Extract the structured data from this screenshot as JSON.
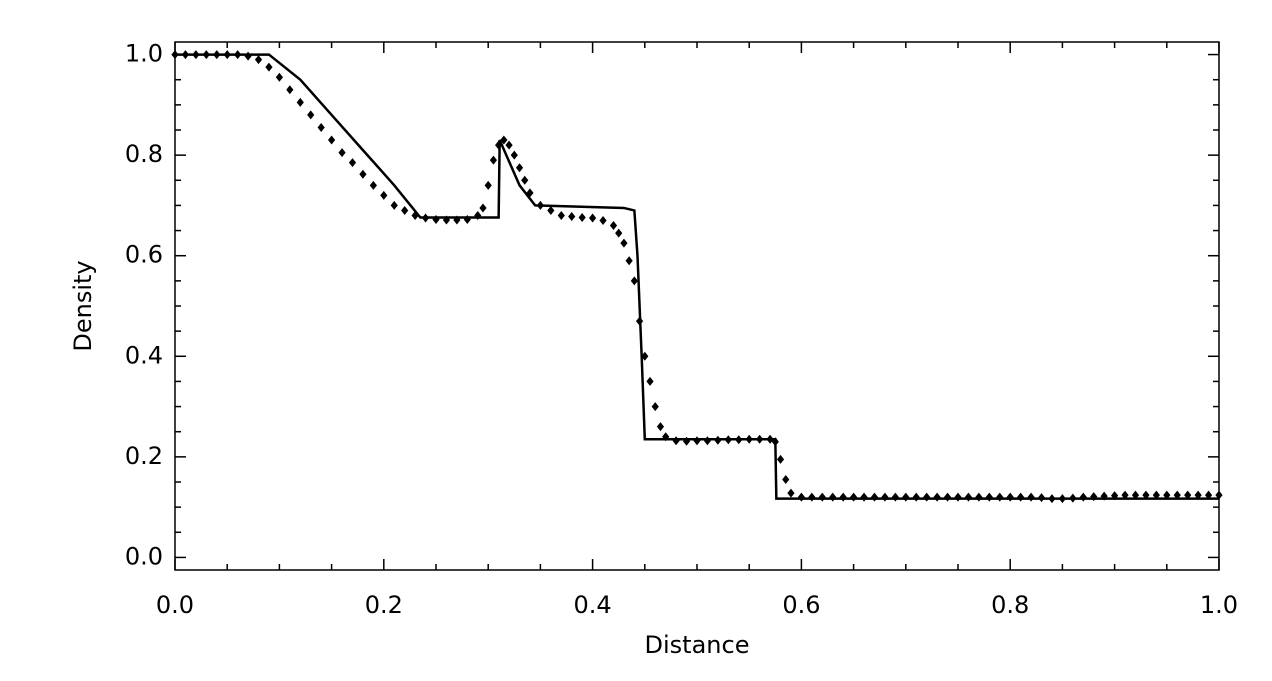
{
  "chart_data": {
    "type": "line",
    "xlabel": "Distance",
    "ylabel": "Density",
    "xlim": [
      0,
      1
    ],
    "ylim": [
      -0.025,
      1.025
    ],
    "xticks": [
      {
        "value": 0,
        "label": "0.0"
      },
      0.2,
      0.4,
      0.6,
      0.8,
      {
        "value": 1,
        "label": "1.0"
      }
    ],
    "yticks": [
      {
        "value": 0,
        "label": "0.0"
      },
      0.2,
      0.4,
      0.6,
      0.8,
      {
        "value": 1,
        "label": "1.0"
      }
    ],
    "xminorticks": [
      0.05,
      0.1,
      0.15,
      0.25,
      0.3,
      0.35,
      0.45,
      0.5,
      0.55,
      0.65,
      0.7,
      0.75,
      0.85,
      0.9,
      0.95
    ],
    "yminorticks": [
      0.05,
      0.1,
      0.15,
      0.25,
      0.3,
      0.35,
      0.45,
      0.5,
      0.55,
      0.65,
      0.7,
      0.75,
      0.85,
      0.9,
      0.95
    ],
    "series": [
      {
        "type": "line",
        "color": "#000000",
        "x": [
          0,
          0.09,
          0.12,
          0.15,
          0.18,
          0.21,
          0.235,
          0.31,
          0.311,
          0.33,
          0.345,
          0.43,
          0.44,
          0.443,
          0.447,
          0.45,
          0.575,
          0.576,
          1
        ],
        "values": [
          1,
          1,
          0.95,
          0.88,
          0.81,
          0.74,
          0.676,
          0.676,
          0.83,
          0.74,
          0.7,
          0.695,
          0.69,
          0.6,
          0.4,
          0.235,
          0.235,
          0.117,
          0.117
        ]
      },
      {
        "type": "scatter",
        "color": "#000000",
        "x": [
          0,
          0.01,
          0.02,
          0.03,
          0.04,
          0.05,
          0.06,
          0.07,
          0.08,
          0.09,
          0.1,
          0.11,
          0.12,
          0.13,
          0.14,
          0.15,
          0.16,
          0.17,
          0.18,
          0.19,
          0.2,
          0.21,
          0.22,
          0.23,
          0.24,
          0.25,
          0.26,
          0.27,
          0.28,
          0.29,
          0.295,
          0.3,
          0.305,
          0.31,
          0.315,
          0.32,
          0.325,
          0.33,
          0.335,
          0.34,
          0.35,
          0.36,
          0.37,
          0.38,
          0.39,
          0.4,
          0.41,
          0.42,
          0.425,
          0.43,
          0.435,
          0.44,
          0.445,
          0.45,
          0.455,
          0.46,
          0.465,
          0.47,
          0.48,
          0.49,
          0.5,
          0.51,
          0.52,
          0.53,
          0.54,
          0.55,
          0.56,
          0.57,
          0.575,
          0.58,
          0.585,
          0.59,
          0.6,
          0.61,
          0.62,
          0.63,
          0.64,
          0.65,
          0.66,
          0.67,
          0.68,
          0.69,
          0.7,
          0.71,
          0.72,
          0.73,
          0.74,
          0.75,
          0.76,
          0.77,
          0.78,
          0.79,
          0.8,
          0.81,
          0.82,
          0.83,
          0.84,
          0.85,
          0.86,
          0.87,
          0.88,
          0.89,
          0.9,
          0.91,
          0.92,
          0.93,
          0.94,
          0.95,
          0.96,
          0.97,
          0.98,
          0.99,
          1
        ],
        "values": [
          1,
          1,
          1,
          1,
          1,
          1,
          1,
          0.997,
          0.99,
          0.975,
          0.955,
          0.93,
          0.905,
          0.88,
          0.855,
          0.83,
          0.805,
          0.785,
          0.762,
          0.74,
          0.72,
          0.7,
          0.69,
          0.68,
          0.675,
          0.672,
          0.671,
          0.671,
          0.672,
          0.68,
          0.695,
          0.74,
          0.79,
          0.82,
          0.83,
          0.82,
          0.8,
          0.775,
          0.75,
          0.725,
          0.7,
          0.69,
          0.68,
          0.678,
          0.676,
          0.675,
          0.67,
          0.66,
          0.645,
          0.625,
          0.59,
          0.55,
          0.47,
          0.4,
          0.35,
          0.3,
          0.26,
          0.24,
          0.232,
          0.231,
          0.232,
          0.232,
          0.233,
          0.234,
          0.234,
          0.235,
          0.235,
          0.235,
          0.23,
          0.195,
          0.155,
          0.128,
          0.12,
          0.12,
          0.12,
          0.12,
          0.12,
          0.12,
          0.12,
          0.12,
          0.12,
          0.12,
          0.12,
          0.12,
          0.12,
          0.12,
          0.12,
          0.12,
          0.12,
          0.12,
          0.12,
          0.12,
          0.12,
          0.12,
          0.12,
          0.119,
          0.117,
          0.117,
          0.118,
          0.12,
          0.121,
          0.122,
          0.123,
          0.124,
          0.124,
          0.124,
          0.124,
          0.124,
          0.124,
          0.124,
          0.124,
          0.124,
          0.124
        ]
      }
    ]
  }
}
